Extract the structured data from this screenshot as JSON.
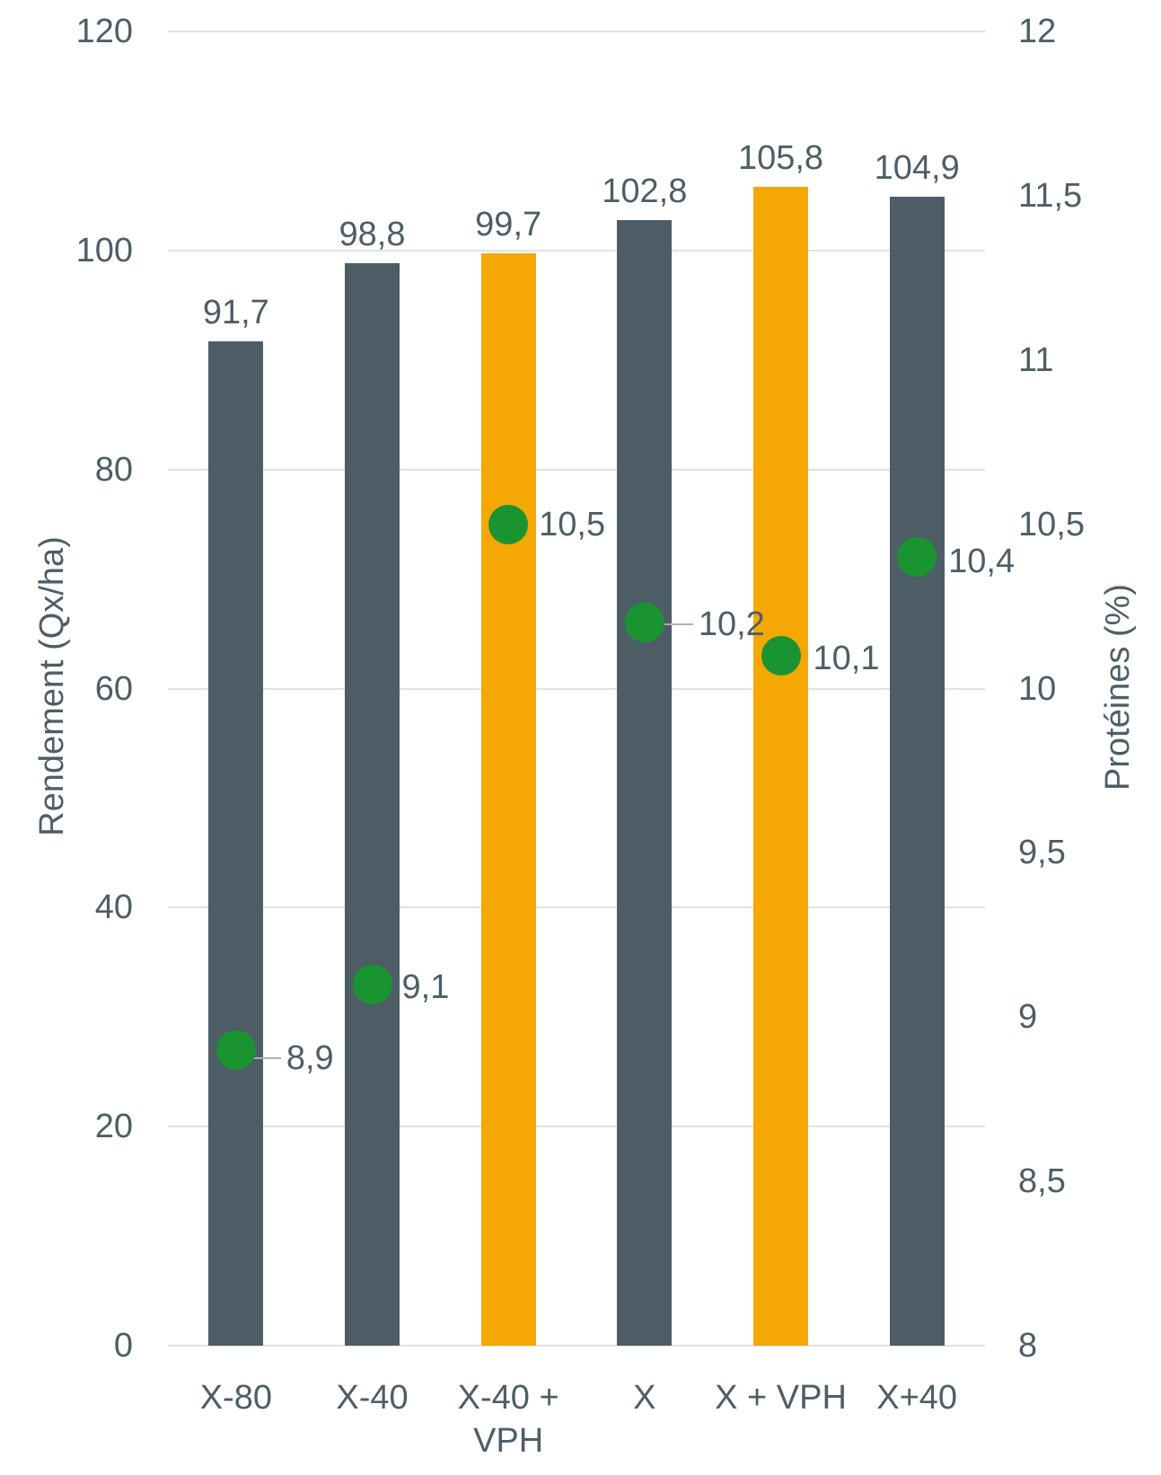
{
  "chart_data": {
    "type": "bar",
    "subtype": "combo-bar-scatter-dual-axis",
    "title": "",
    "categories": [
      {
        "lines": [
          "X-80"
        ]
      },
      {
        "lines": [
          "X-40"
        ]
      },
      {
        "lines": [
          "X-40 +",
          "VPH"
        ]
      },
      {
        "lines": [
          "X"
        ]
      },
      {
        "lines": [
          "X + VPH"
        ]
      },
      {
        "lines": [
          "X+40"
        ]
      }
    ],
    "left_axis": {
      "title": "Rendement (Qx/ha)",
      "min": 0,
      "max": 120,
      "step": 20,
      "tick_labels": [
        "0",
        "20",
        "40",
        "60",
        "80",
        "100",
        "120"
      ]
    },
    "right_axis": {
      "title": "Protéines (%)",
      "min": 8,
      "max": 12,
      "step": 0.5,
      "tick_labels": [
        "8",
        "8,5",
        "9",
        "9,5",
        "10",
        "10,5",
        "11",
        "11,5",
        "12"
      ]
    },
    "series": [
      {
        "name": "rendement-bars",
        "type": "bar",
        "axis": "left",
        "values": [
          91.7,
          98.8,
          99.7,
          102.8,
          105.8,
          104.9
        ],
        "labels": [
          "91,7",
          "98,8",
          "99,7",
          "102,8",
          "105,8",
          "104,9"
        ],
        "bar_color_keys": [
          "slate",
          "slate",
          "orange",
          "slate",
          "orange",
          "slate"
        ]
      },
      {
        "name": "proteines-dots",
        "type": "scatter",
        "axis": "right",
        "values": [
          8.9,
          9.1,
          10.5,
          10.2,
          10.1,
          10.4
        ],
        "labels": [
          "8,9",
          "9,1",
          "10,5",
          "10,2",
          "10,1",
          "10,4"
        ],
        "leader_line": [
          true,
          false,
          false,
          true,
          false,
          false
        ],
        "label_offsets": [
          56,
          33,
          34,
          60,
          36,
          35
        ],
        "label_dy": [
          9,
          3,
          0,
          2,
          3,
          5
        ]
      }
    ],
    "colors": {
      "slate": "#4c5d66",
      "orange": "#f5a703",
      "green": "#1a9431",
      "text": "#4e5e66",
      "gridline": "#e2e2e2",
      "leader": "#b0b0b0"
    },
    "grid": true,
    "legend": false
  }
}
